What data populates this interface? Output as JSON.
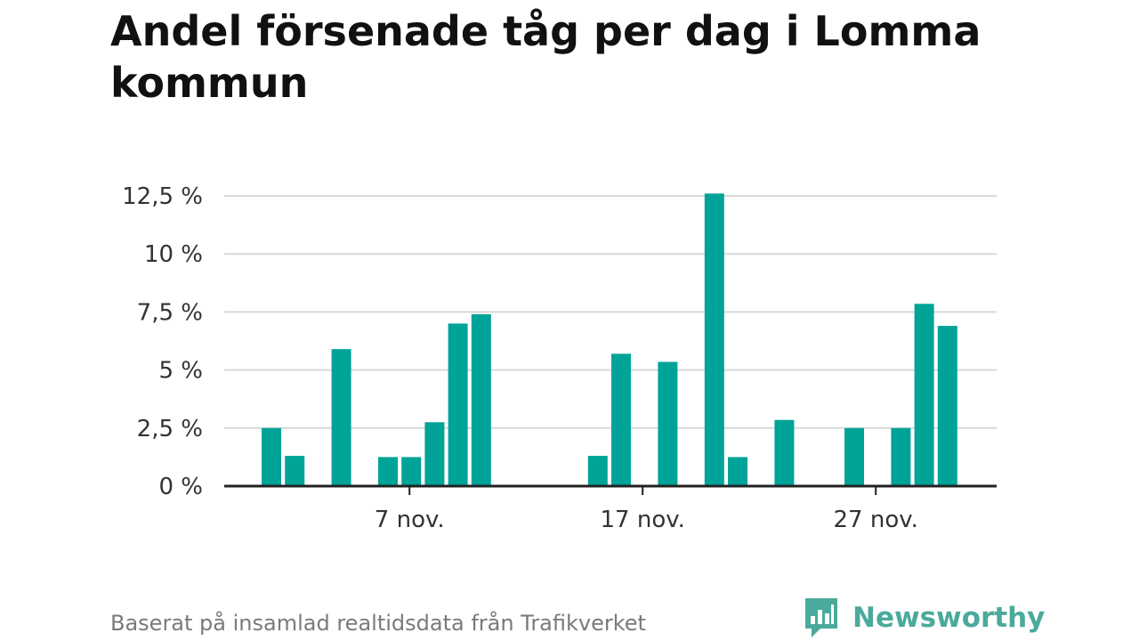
{
  "title": "Andel försenade tåg per dag i Lomma kommun",
  "source": "Baserat på insamlad realtidsdata från Trafikverket",
  "brand": "Newsworthy",
  "colors": {
    "bar": "#00a398",
    "logo": "#4aaa9c",
    "grid": "#d9d9d9",
    "axis": "#222222"
  },
  "chart_data": {
    "type": "bar",
    "x_unit": "day of November",
    "x": [
      1,
      2,
      3,
      4,
      5,
      6,
      7,
      8,
      9,
      10,
      11,
      12,
      13,
      14,
      15,
      16,
      17,
      18,
      19,
      20,
      21,
      22,
      23,
      24,
      25,
      26,
      27,
      28,
      29,
      30
    ],
    "values": [
      2.5,
      1.3,
      null,
      5.9,
      null,
      1.25,
      1.25,
      2.75,
      7.0,
      7.4,
      null,
      null,
      null,
      null,
      1.3,
      5.7,
      null,
      5.35,
      null,
      12.6,
      1.25,
      null,
      2.85,
      null,
      null,
      2.5,
      null,
      2.5,
      7.85,
      6.9
    ],
    "y_ticks": [
      0,
      2.5,
      5,
      7.5,
      10,
      12.5
    ],
    "y_tick_labels": [
      "0 %",
      "2,5 %",
      "5 %",
      "7,5 %",
      "10 %",
      "12,5 %"
    ],
    "x_ticks": [
      7,
      17,
      27
    ],
    "x_tick_labels": [
      "7 nov.",
      "17 nov.",
      "27 nov."
    ],
    "ylim": [
      0,
      12.5
    ],
    "grid": "horizontal"
  }
}
